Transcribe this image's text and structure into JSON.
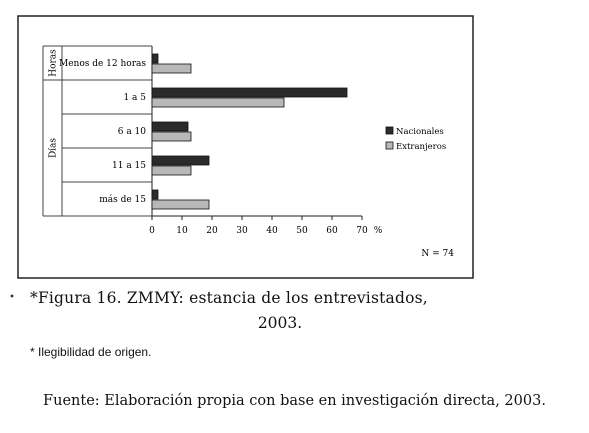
{
  "chart_data": {
    "type": "bar",
    "orientation": "horizontal",
    "groups": [
      {
        "name": "Horas",
        "categories": [
          "Menos de 12 horas"
        ]
      },
      {
        "name": "Días",
        "categories": [
          "1 a 5",
          "6 a 10",
          "11 a 15",
          "más de 15"
        ]
      }
    ],
    "categories": [
      "Menos de 12 horas",
      "1 a 5",
      "6 a 10",
      "11 a 15",
      "más de 15"
    ],
    "series": [
      {
        "name": "Nacionales",
        "color": "#2b2b2b",
        "values": [
          2,
          65,
          12,
          19,
          2
        ]
      },
      {
        "name": "Extranjeros",
        "color": "#b8b8b8",
        "values": [
          13,
          44,
          13,
          13,
          19
        ]
      }
    ],
    "xlim": [
      0,
      70
    ],
    "xticks": [
      0,
      10,
      20,
      30,
      40,
      50,
      60,
      70
    ],
    "x_unit": "%",
    "annotation": "N = 74",
    "legend_position": "right",
    "grid": false
  },
  "caption": {
    "line1": "*Figura 16. ZMMY: estancia de los entrevistados,",
    "line2": "2003.",
    "note": "* Ilegibilidad de origen.",
    "source": "Fuente: Elaboración propia con base en investigación directa, 2003."
  }
}
